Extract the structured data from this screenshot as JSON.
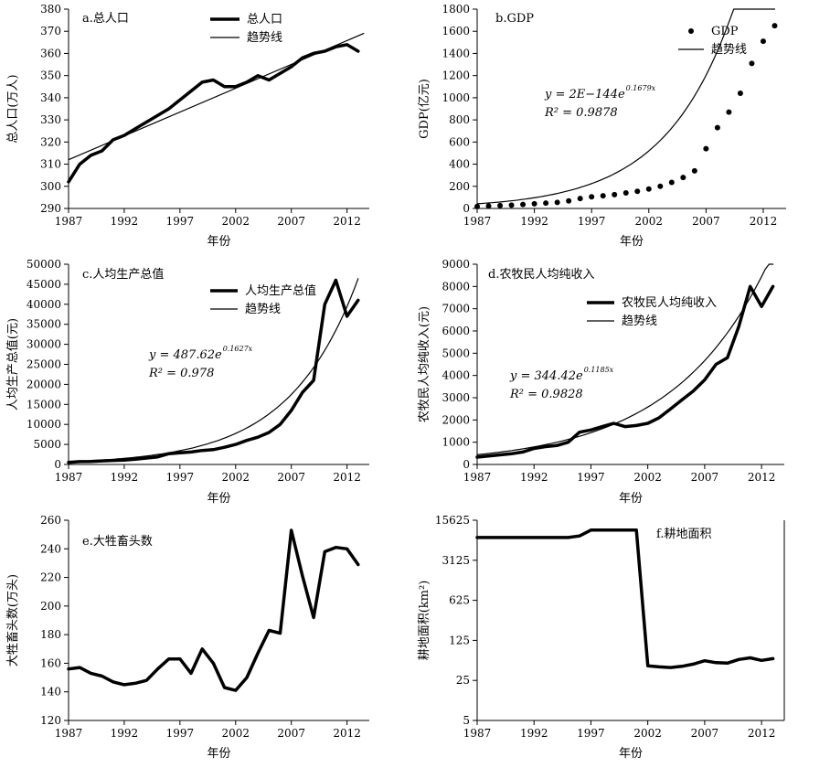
{
  "chart_data": [
    {
      "id": "a",
      "type": "line",
      "title": "a.总人口",
      "xlabel": "年份",
      "ylabel": "总人口(万人)",
      "xlim": [
        1987,
        2014
      ],
      "ylim": [
        290,
        380
      ],
      "xticks": [
        1987,
        1992,
        1997,
        2002,
        2007,
        2012
      ],
      "yticks": [
        290,
        300,
        310,
        320,
        330,
        340,
        350,
        360,
        370,
        380
      ],
      "legend_position": "top-center",
      "series": [
        {
          "name": "总人口",
          "style": "thick",
          "x": [
            1987,
            1988,
            1989,
            1990,
            1991,
            1992,
            1993,
            1994,
            1995,
            1996,
            1997,
            1998,
            1999,
            2000,
            2001,
            2002,
            2003,
            2004,
            2005,
            2006,
            2007,
            2008,
            2009,
            2010,
            2011,
            2012,
            2013
          ],
          "y": [
            302,
            310,
            314,
            316,
            321,
            323,
            326,
            329,
            332,
            335,
            339,
            343,
            347,
            348,
            345,
            345,
            347,
            350,
            348,
            351,
            354,
            358,
            360,
            361,
            363,
            364,
            361
          ]
        },
        {
          "name": "趋势线",
          "style": "thin",
          "x": [
            1987,
            2013.5
          ],
          "y": [
            312,
            369
          ]
        }
      ]
    },
    {
      "id": "b",
      "type": "scatter",
      "title": "b.GDP",
      "xlabel": "年份",
      "ylabel": "GDP(亿元)",
      "xlim": [
        1987,
        2014
      ],
      "ylim": [
        0,
        1800
      ],
      "xticks": [
        1987,
        1992,
        1997,
        2002,
        2007,
        2012
      ],
      "yticks": [
        0,
        200,
        400,
        600,
        800,
        1000,
        1200,
        1400,
        1600,
        1800
      ],
      "legend_position": "top-right",
      "equation": {
        "text": "y = 2E−144e",
        "exp": "0.1679x",
        "r2": "R² = 0.9878"
      },
      "series": [
        {
          "name": "GDP",
          "style": "points",
          "x": [
            1987,
            1988,
            1989,
            1990,
            1991,
            1992,
            1993,
            1994,
            1995,
            1996,
            1997,
            1998,
            1999,
            2000,
            2001,
            2002,
            2003,
            2004,
            2005,
            2006,
            2007,
            2008,
            2009,
            2010,
            2011,
            2012,
            2013
          ],
          "y": [
            18,
            22,
            26,
            30,
            36,
            42,
            48,
            55,
            68,
            90,
            105,
            115,
            125,
            140,
            155,
            175,
            200,
            235,
            280,
            340,
            540,
            730,
            870,
            1040,
            1310,
            1510,
            1650
          ]
        },
        {
          "name": "趋势线",
          "style": "thin",
          "fit": "exp",
          "a": 35.38,
          "b": 0.1679,
          "x0": 1987,
          "x_end": 2013
        }
      ]
    },
    {
      "id": "c",
      "type": "line",
      "title": "c.人均生产总值",
      "xlabel": "年份",
      "ylabel": "人均生产总值(元)",
      "xlim": [
        1987,
        2014
      ],
      "ylim": [
        0,
        50000
      ],
      "xticks": [
        1987,
        1992,
        1997,
        2002,
        2007,
        2012
      ],
      "yticks": [
        0,
        5000,
        10000,
        15000,
        20000,
        25000,
        30000,
        35000,
        40000,
        45000,
        50000
      ],
      "legend_position": "top-right",
      "equation": {
        "text": "y = 487.62e",
        "exp": "0.1627x",
        "r2": "R² = 0.978"
      },
      "series": [
        {
          "name": "人均生产总值",
          "style": "thick",
          "x": [
            1987,
            1988,
            1989,
            1990,
            1991,
            1992,
            1993,
            1994,
            1995,
            1996,
            1997,
            1998,
            1999,
            2000,
            2001,
            2002,
            2003,
            2004,
            2005,
            2006,
            2007,
            2008,
            2009,
            2010,
            2011,
            2012,
            2013
          ],
          "y": [
            500,
            700,
            750,
            900,
            1000,
            1100,
            1300,
            1600,
            1900,
            2700,
            2900,
            3100,
            3500,
            3700,
            4300,
            5000,
            6000,
            6800,
            8000,
            10000,
            13500,
            18000,
            21000,
            40000,
            46000,
            37000,
            41000
          ]
        },
        {
          "name": "趋势线",
          "style": "thin",
          "fit": "exp",
          "a": 487.62,
          "b": 0.1627,
          "x0": 1986,
          "x_end": 2013
        }
      ]
    },
    {
      "id": "d",
      "type": "line",
      "title": "d.农牧民人均纯收入",
      "xlabel": "年份",
      "ylabel": "农牧民人均纯收入(元)",
      "xlim": [
        1987,
        2014
      ],
      "ylim": [
        0,
        9000
      ],
      "xticks": [
        1987,
        1992,
        1997,
        2002,
        2007,
        2012
      ],
      "yticks": [
        0,
        1000,
        2000,
        3000,
        4000,
        5000,
        6000,
        7000,
        8000,
        9000
      ],
      "legend_position": "top-right",
      "equation": {
        "text": "y = 344.42e",
        "exp": "0.1185x",
        "r2": "R² = 0.9828"
      },
      "series": [
        {
          "name": "农牧民人均纯收入",
          "style": "thick",
          "x": [
            1987,
            1988,
            1989,
            1990,
            1991,
            1992,
            1993,
            1994,
            1995,
            1996,
            1997,
            1998,
            1999,
            2000,
            2001,
            2002,
            2003,
            2004,
            2005,
            2006,
            2007,
            2008,
            2009,
            2010,
            2011,
            2012,
            2013
          ],
          "y": [
            330,
            380,
            430,
            480,
            560,
            720,
            800,
            850,
            1000,
            1450,
            1550,
            1700,
            1850,
            1700,
            1750,
            1850,
            2100,
            2500,
            2900,
            3300,
            3800,
            4500,
            4800,
            6200,
            8000,
            7100,
            8000
          ]
        },
        {
          "name": "趋势线",
          "style": "thin",
          "fit": "exp",
          "a": 344.42,
          "b": 0.1185,
          "x0": 1986,
          "x_end": 2013
        }
      ]
    },
    {
      "id": "e",
      "type": "line",
      "title": "e.大牲畜头数",
      "xlabel": "年份",
      "ylabel": "大牲畜头数(万头)",
      "xlim": [
        1987,
        2014
      ],
      "ylim": [
        120,
        260
      ],
      "xticks": [
        1987,
        1992,
        1997,
        2002,
        2007,
        2012
      ],
      "yticks": [
        120,
        140,
        160,
        180,
        200,
        220,
        240,
        260
      ],
      "series": [
        {
          "name": "",
          "style": "thick",
          "x": [
            1987,
            1988,
            1989,
            1990,
            1991,
            1992,
            1993,
            1994,
            1995,
            1996,
            1997,
            1998,
            1999,
            2000,
            2001,
            2002,
            2003,
            2004,
            2005,
            2006,
            2007,
            2008,
            2009,
            2010,
            2011,
            2012,
            2013
          ],
          "y": [
            156,
            157,
            153,
            151,
            147,
            145,
            146,
            148,
            156,
            163,
            163,
            153,
            170,
            160,
            143,
            141,
            150,
            167,
            183,
            181,
            253,
            221,
            192,
            238,
            241,
            240,
            229
          ]
        }
      ]
    },
    {
      "id": "f",
      "type": "line",
      "title": "f.耕地面积",
      "xlabel": "年份",
      "ylabel": "耕地面积(km²)",
      "yscale": "log",
      "xlim": [
        1987,
        2014
      ],
      "ylim": [
        5,
        15625
      ],
      "xticks": [
        1987,
        1992,
        1997,
        2002,
        2007,
        2012
      ],
      "yticks": [
        5,
        25,
        125,
        625,
        3125,
        15625
      ],
      "series": [
        {
          "name": "",
          "style": "thick",
          "x": [
            1987,
            1988,
            1989,
            1990,
            1991,
            1992,
            1993,
            1994,
            1995,
            1996,
            1997,
            1998,
            1999,
            2000,
            2001,
            2002,
            2003,
            2004,
            2005,
            2006,
            2007,
            2008,
            2009,
            2010,
            2011,
            2012,
            2013
          ],
          "y": [
            7800,
            7800,
            7800,
            7800,
            7800,
            7800,
            7800,
            7800,
            7800,
            8300,
            10500,
            10500,
            10500,
            10500,
            10500,
            45,
            43,
            42,
            44,
            48,
            55,
            51,
            50,
            58,
            62,
            56,
            60
          ]
        }
      ]
    }
  ]
}
